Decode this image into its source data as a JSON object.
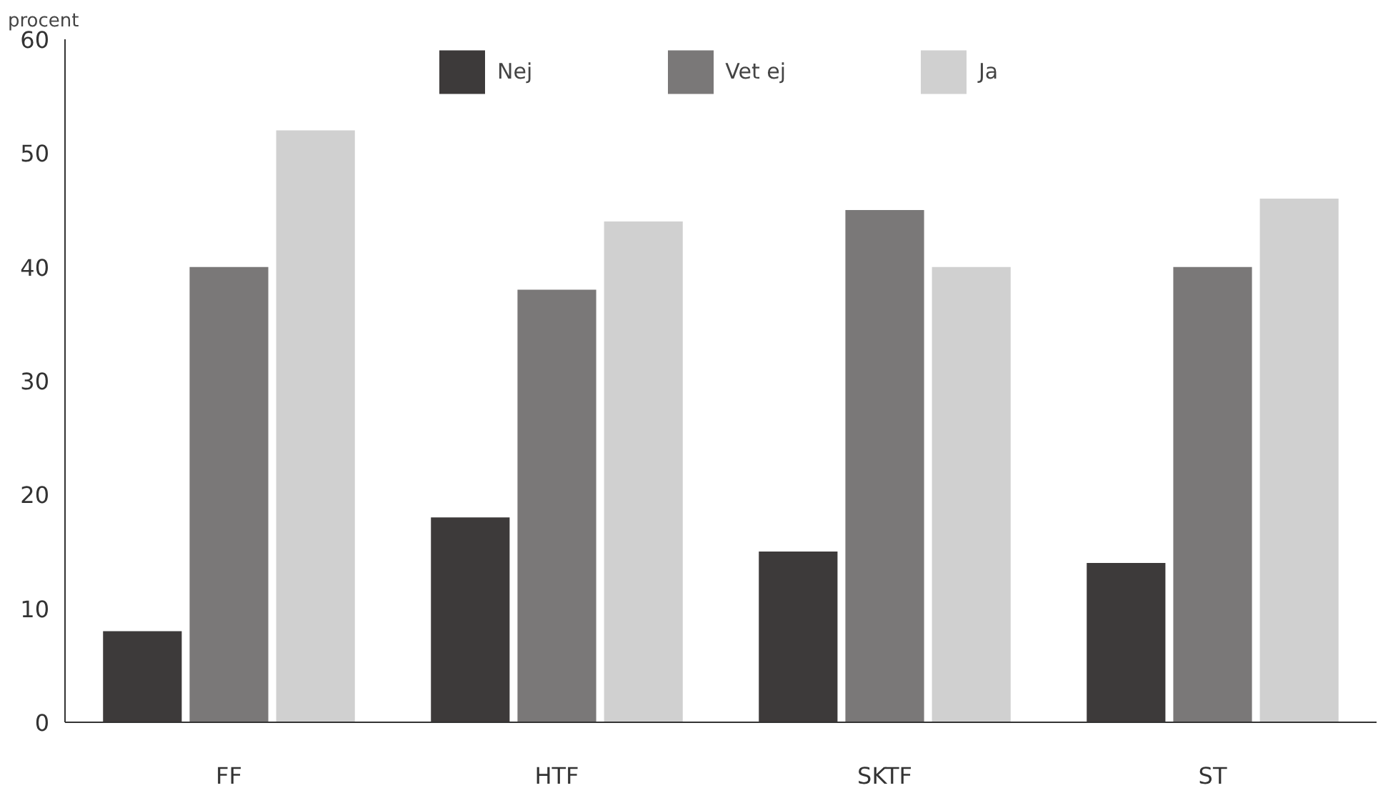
{
  "chart_data": {
    "type": "bar",
    "ylabel": "procent",
    "categories": [
      "FF",
      "HTF",
      "SKTF",
      "ST"
    ],
    "series": [
      {
        "name": "Nej",
        "color": "#3d3a3a",
        "values": [
          8,
          18,
          15,
          14
        ]
      },
      {
        "name": "Vet ej",
        "color": "#7a7878",
        "values": [
          40,
          38,
          45,
          40
        ]
      },
      {
        "name": "Ja",
        "color": "#d0d0d0",
        "values": [
          52,
          44,
          40,
          46
        ]
      }
    ],
    "ylim": [
      0,
      60
    ],
    "yticks": [
      0,
      10,
      20,
      30,
      40,
      50,
      60
    ],
    "grid": false,
    "legend": "top"
  }
}
